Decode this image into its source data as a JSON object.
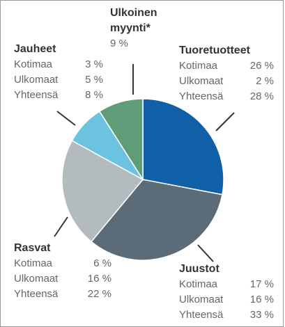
{
  "chart_data": {
    "type": "pie",
    "categories": [
      "Tuoretuotteet",
      "Juustot",
      "Rasvat",
      "Jauheet",
      "Ulkoinen myynti*"
    ],
    "values": [
      28,
      33,
      22,
      8,
      9
    ],
    "value_labels": [
      "28 %",
      "33 %",
      "22 %",
      "8 %",
      "9 %"
    ],
    "colors": [
      "#1060a8",
      "#5b6b77",
      "#b3bbbe",
      "#6bc3df",
      "#5f9d78"
    ],
    "breakdown": [
      {
        "labels": [
          "Kotimaa",
          "Ulkomaat",
          "Yhteensä"
        ],
        "values": [
          26,
          2,
          28
        ],
        "value_labels": [
          "26 %",
          "2 %",
          "28 %"
        ]
      },
      {
        "labels": [
          "Kotimaa",
          "Ulkomaat",
          "Yhteensä"
        ],
        "values": [
          17,
          16,
          33
        ],
        "value_labels": [
          "17 %",
          "16 %",
          "33 %"
        ]
      },
      {
        "labels": [
          "Kotimaa",
          "Ulkomaat",
          "Yhteensä"
        ],
        "values": [
          6,
          16,
          22
        ],
        "value_labels": [
          "6 %",
          "16 %",
          "22 %"
        ]
      },
      {
        "labels": [
          "Kotimaa",
          "Ulkomaat",
          "Yhteensä"
        ],
        "values": [
          3,
          5,
          8
        ],
        "value_labels": [
          "3 %",
          "5 %",
          "8 %"
        ]
      },
      null
    ]
  }
}
